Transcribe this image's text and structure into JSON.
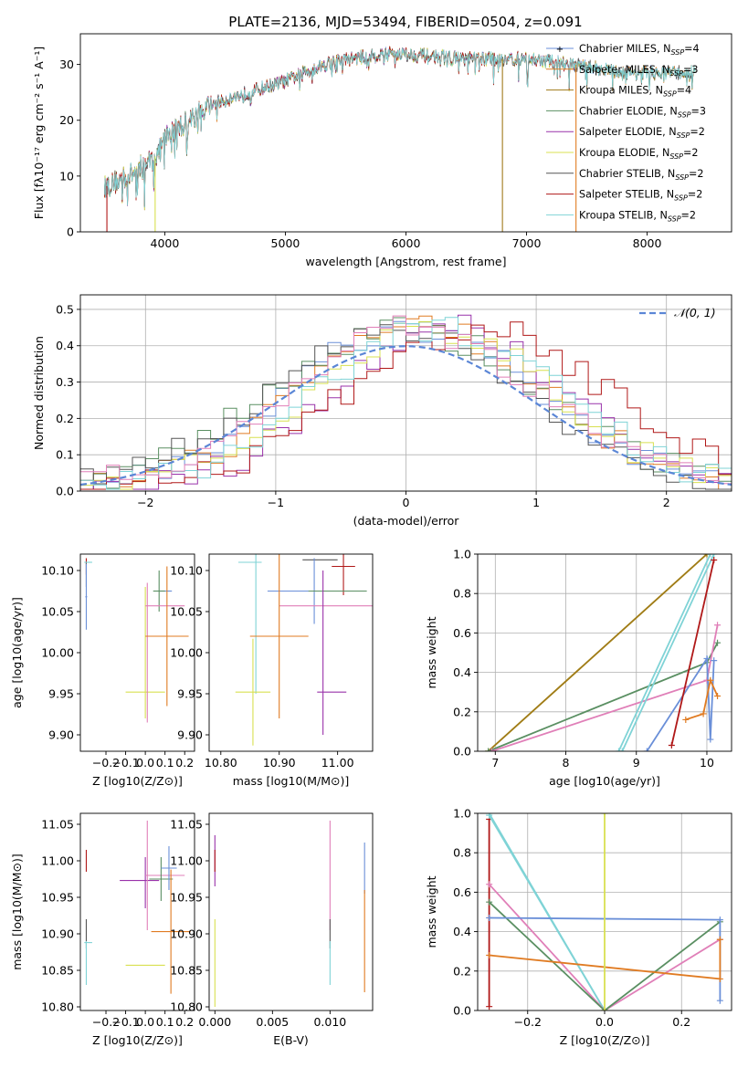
{
  "figure": {
    "title": "PLATE=2136, MJD=53494, FIBERID=0504, z=0.091"
  },
  "palette": {
    "Chabrier MILES": "#6a8fd8",
    "Salpeter MILES": "#e07b22",
    "Kroupa MILES": "#a07a1a",
    "Chabrier ELODIE": "#5a8f62",
    "Salpeter ELODIE": "#9932aa",
    "Kroupa ELODIE": "#d8e050",
    "Chabrier STELIB": "#555555",
    "Salpeter STELIB": "#b01818",
    "Kroupa STELIB": "#7fd3d6",
    "Pink": "#e07fb8"
  },
  "chart_data": [
    {
      "type": "line",
      "title": "PLATE=2136, MJD=53494, FIBERID=0504, z=0.091",
      "xlabel": "wavelength [Angstrom, rest frame]",
      "ylabel": "Flux [fλ10⁻¹⁷ erg cm⁻² s⁻¹ A⁻¹]",
      "xlim": [
        3300,
        8700
      ],
      "ylim": [
        0,
        35.5
      ],
      "xticks": [
        4000,
        5000,
        6000,
        7000,
        8000
      ],
      "yticks": [
        0,
        10,
        20,
        30
      ],
      "legend": "right",
      "series": [
        {
          "name": "Chabrier MILES, N_SSP=4",
          "wave_range": [
            3500,
            8400
          ]
        },
        {
          "name": "Salpeter MILES, N_SSP=3",
          "wave_range": [
            3500,
            8400
          ]
        },
        {
          "name": "Kroupa MILES, N_SSP=4",
          "wave_range": [
            3500,
            8400
          ]
        },
        {
          "name": "Chabrier ELODIE, N_SSP=3",
          "wave_range": [
            3500,
            7400
          ]
        },
        {
          "name": "Salpeter ELODIE, N_SSP=2",
          "wave_range": [
            3500,
            7400
          ]
        },
        {
          "name": "Kroupa ELODIE, N_SSP=2",
          "wave_range": [
            3500,
            7400
          ]
        },
        {
          "name": "Chabrier STELIB, N_SSP=2",
          "wave_range": [
            3500,
            8400
          ]
        },
        {
          "name": "Salpeter STELIB, N_SSP=2",
          "wave_range": [
            3500,
            7400
          ]
        },
        {
          "name": "Kroupa STELIB, N_SSP=2",
          "wave_range": [
            3500,
            8400
          ]
        }
      ],
      "continuum": [
        [
          3500,
          8
        ],
        [
          3700,
          10
        ],
        [
          3950,
          14
        ],
        [
          4000,
          17
        ],
        [
          4200,
          20
        ],
        [
          4400,
          23
        ],
        [
          4700,
          25
        ],
        [
          5000,
          27
        ],
        [
          5200,
          29
        ],
        [
          5400,
          30.5
        ],
        [
          5700,
          31.5
        ],
        [
          5900,
          32
        ],
        [
          6200,
          31.5
        ],
        [
          6500,
          31
        ],
        [
          7000,
          31
        ],
        [
          7400,
          30
        ],
        [
          7800,
          28.5
        ],
        [
          8100,
          28.5
        ],
        [
          8400,
          28.5
        ]
      ],
      "dropouts": [
        3520,
        3920,
        6800,
        7410
      ]
    },
    {
      "type": "bar",
      "xlabel": "(data-model)/error",
      "ylabel": "Normed distribution",
      "xlim": [
        -2.5,
        2.5
      ],
      "ylim": [
        0,
        0.54
      ],
      "xticks": [
        -2,
        -1,
        0,
        1,
        2
      ],
      "yticks": [
        0.0,
        0.1,
        0.2,
        0.3,
        0.4,
        0.5
      ],
      "legend": "top-right",
      "reference": "𝒩(0, 1)",
      "bin_width": 0.1
    },
    {
      "type": "scatter",
      "xlabel": "Z [log10(Z/Z⊙)]",
      "ylabel": "age  [log10(age/yr)]",
      "xlim": [
        -0.33,
        0.25
      ],
      "ylim": [
        9.88,
        10.12
      ],
      "xticks": [
        -0.2,
        -0.1,
        0.0,
        0.1,
        0.2
      ],
      "yticks": [
        9.9,
        9.95,
        10.0,
        10.05,
        10.1
      ],
      "points": [
        {
          "x": -0.3,
          "y": 10.105,
          "xerr": 0.0,
          "yerr": 0.01,
          "color": "Salpeter STELIB"
        },
        {
          "x": -0.3,
          "y": 10.095,
          "xerr": 0.0,
          "yerr": 0.015,
          "color": "Chabrier STELIB"
        },
        {
          "x": -0.3,
          "y": 10.068,
          "xerr": 0.005,
          "yerr": 0.04,
          "color": "Chabrier MILES"
        },
        {
          "x": -0.29,
          "y": 10.11,
          "xerr": 0.02,
          "yerr": 0.0,
          "color": "Kroupa STELIB"
        },
        {
          "x": 0.0,
          "y": 9.952,
          "xerr": 0.1,
          "yerr": 0.0,
          "color": "Kroupa ELODIE"
        },
        {
          "x": 0.01,
          "y": 10.0,
          "xerr": 0.0,
          "yerr": 0.085,
          "color": "Pink"
        },
        {
          "x": 0.0,
          "y": 10.0,
          "xerr": 0.0,
          "yerr": 0.08,
          "color": "Kroupa ELODIE"
        },
        {
          "x": 0.1,
          "y": 10.075,
          "xerr": 0.035,
          "yerr": 0.0,
          "color": "Chabrier MILES"
        },
        {
          "x": 0.07,
          "y": 10.075,
          "xerr": 0.03,
          "yerr": 0.025,
          "color": "Chabrier ELODIE"
        },
        {
          "x": 0.1,
          "y": 10.057,
          "xerr": 0.1,
          "yerr": 0.0,
          "color": "Pink"
        },
        {
          "x": 0.11,
          "y": 10.02,
          "xerr": 0.11,
          "yerr": 0.085,
          "color": "Salpeter MILES"
        }
      ]
    },
    {
      "type": "scatter",
      "xlabel": "mass [log10(M/M⊙)]",
      "ylabel": "",
      "xlim": [
        10.78,
        11.06
      ],
      "ylim": [
        9.88,
        10.12
      ],
      "xticks": [
        10.8,
        10.9,
        11.0
      ],
      "yticks": [
        9.9,
        9.95,
        10.0,
        10.05,
        10.1
      ],
      "points": [
        {
          "x": 10.97,
          "y": 10.113,
          "xerr": 0.03,
          "yerr": 0.0,
          "color": "Chabrier STELIB"
        },
        {
          "x": 11.01,
          "y": 10.105,
          "xerr": 0.02,
          "yerr": 0.035,
          "color": "Salpeter STELIB"
        },
        {
          "x": 10.85,
          "y": 10.11,
          "xerr": 0.02,
          "yerr": 0.0,
          "color": "Kroupa STELIB"
        },
        {
          "x": 10.86,
          "y": 10.05,
          "xerr": 0.0,
          "yerr": 0.1,
          "color": "Kroupa STELIB"
        },
        {
          "x": 10.96,
          "y": 10.075,
          "xerr": 0.08,
          "yerr": 0.04,
          "color": "Chabrier MILES"
        },
        {
          "x": 11.0,
          "y": 10.075,
          "xerr": 0.05,
          "yerr": 0.0,
          "color": "Chabrier ELODIE"
        },
        {
          "x": 10.98,
          "y": 10.057,
          "xerr": 0.08,
          "yerr": 0.0,
          "color": "Pink"
        },
        {
          "x": 10.9,
          "y": 10.02,
          "xerr": 0.05,
          "yerr": 0.1,
          "color": "Salpeter MILES"
        },
        {
          "x": 10.975,
          "y": 10.0,
          "xerr": 0.0,
          "yerr": 0.1,
          "color": "Salpeter ELODIE"
        },
        {
          "x": 10.855,
          "y": 9.952,
          "xerr": 0.03,
          "yerr": 0.065,
          "color": "Kroupa ELODIE"
        },
        {
          "x": 10.99,
          "y": 9.952,
          "xerr": 0.025,
          "yerr": 0.0,
          "color": "Salpeter ELODIE"
        }
      ]
    },
    {
      "type": "line",
      "xlabel": "age  [log10(age/yr)]",
      "ylabel": "mass weight",
      "xlim": [
        6.75,
        10.35
      ],
      "ylim": [
        0,
        1.0
      ],
      "xticks": [
        7,
        8,
        9,
        10
      ],
      "yticks": [
        0.0,
        0.2,
        0.4,
        0.6,
        0.8,
        1.0
      ],
      "series": [
        {
          "color": "Kroupa ELODIE",
          "x": [
            6.9,
            10.0
          ],
          "y": [
            0.0,
            1.0
          ]
        },
        {
          "color": "Kroupa MILES",
          "x": [
            6.9,
            10.0
          ],
          "y": [
            0.0,
            1.0
          ]
        },
        {
          "color": "Chabrier ELODIE",
          "x": [
            6.9,
            10.0,
            10.15
          ],
          "y": [
            0.0,
            0.45,
            0.55
          ]
        },
        {
          "color": "Pink",
          "x": [
            6.95,
            10.0,
            10.15
          ],
          "y": [
            0.0,
            0.36,
            0.64
          ]
        },
        {
          "color": "Kroupa STELIB",
          "x": [
            8.8,
            10.1
          ],
          "y": [
            0.0,
            1.0
          ]
        },
        {
          "color": "Kroupa STELIB",
          "x": [
            8.75,
            10.05
          ],
          "y": [
            0.0,
            1.0
          ]
        },
        {
          "color": "Chabrier MILES",
          "x": [
            9.15,
            10.0,
            10.05,
            10.1
          ],
          "y": [
            0.0,
            0.47,
            0.06,
            0.46
          ]
        },
        {
          "color": "Salpeter MILES",
          "x": [
            9.7,
            9.95,
            10.05,
            10.15
          ],
          "y": [
            0.16,
            0.19,
            0.36,
            0.28
          ]
        },
        {
          "color": "Salpeter STELIB",
          "x": [
            9.5,
            10.1
          ],
          "y": [
            0.03,
            0.97
          ]
        }
      ]
    },
    {
      "type": "scatter",
      "xlabel": "Z [log10(Z/Z⊙)]",
      "ylabel": "mass [log10(M/M⊙)]",
      "xlim": [
        -0.33,
        0.25
      ],
      "ylim": [
        10.795,
        11.065
      ],
      "xticks": [
        -0.2,
        -0.1,
        0.0,
        0.1,
        0.2
      ],
      "yticks": [
        10.8,
        10.85,
        10.9,
        10.95,
        11.0,
        11.05
      ],
      "points": [
        {
          "x": -0.3,
          "y": 11.0,
          "xerr": 0.0,
          "yerr": 0.015,
          "color": "Salpeter STELIB"
        },
        {
          "x": -0.3,
          "y": 10.9,
          "xerr": 0.0,
          "yerr": 0.02,
          "color": "Chabrier STELIB"
        },
        {
          "x": -0.29,
          "y": 10.888,
          "xerr": 0.02,
          "yerr": 0.0,
          "color": "Kroupa STELIB"
        },
        {
          "x": -0.3,
          "y": 10.86,
          "xerr": 0.0,
          "yerr": 0.03,
          "color": "Kroupa STELIB"
        },
        {
          "x": 0.0,
          "y": 10.857,
          "xerr": 0.1,
          "yerr": 0.0,
          "color": "Kroupa ELODIE"
        },
        {
          "x": -0.03,
          "y": 10.973,
          "xerr": 0.1,
          "yerr": 0.0,
          "color": "Salpeter ELODIE"
        },
        {
          "x": 0.0,
          "y": 10.97,
          "xerr": 0.0,
          "yerr": 0.035,
          "color": "Salpeter ELODIE"
        },
        {
          "x": 0.01,
          "y": 10.98,
          "xerr": 0.0,
          "yerr": 0.075,
          "color": "Pink"
        },
        {
          "x": 0.1,
          "y": 10.98,
          "xerr": 0.1,
          "yerr": 0.0,
          "color": "Pink"
        },
        {
          "x": 0.08,
          "y": 10.975,
          "xerr": 0.06,
          "yerr": 0.03,
          "color": "Chabrier ELODIE"
        },
        {
          "x": 0.12,
          "y": 10.99,
          "xerr": 0.04,
          "yerr": 0.03,
          "color": "Chabrier MILES"
        },
        {
          "x": 0.13,
          "y": 10.903,
          "xerr": 0.1,
          "yerr": 0.085,
          "color": "Salpeter MILES"
        }
      ]
    },
    {
      "type": "scatter",
      "xlabel": "E(B-V)",
      "ylabel": "",
      "xlim": [
        -0.0005,
        0.0137
      ],
      "ylim": [
        10.795,
        11.065
      ],
      "xticks": [
        0.0,
        0.005,
        0.01
      ],
      "xticklabels": [
        "0.000",
        "0.005",
        "0.010"
      ],
      "yticks": [
        10.8,
        10.85,
        10.9,
        10.95,
        11.0,
        11.05
      ],
      "points": [
        {
          "x": 0.0,
          "y": 11.0,
          "xerr": 0,
          "yerr": 0.035,
          "color": "Salpeter ELODIE"
        },
        {
          "x": 0.0,
          "y": 11.0,
          "xerr": 0,
          "yerr": 0.015,
          "color": "Salpeter STELIB"
        },
        {
          "x": 0.0,
          "y": 10.86,
          "xerr": 0,
          "yerr": 0.06,
          "color": "Kroupa ELODIE"
        },
        {
          "x": 0.01,
          "y": 10.98,
          "xerr": 0,
          "yerr": 0.075,
          "color": "Pink"
        },
        {
          "x": 0.01,
          "y": 10.9,
          "xerr": 0,
          "yerr": 0.02,
          "color": "Chabrier STELIB"
        },
        {
          "x": 0.01,
          "y": 10.86,
          "xerr": 0,
          "yerr": 0.03,
          "color": "Kroupa STELIB"
        },
        {
          "x": 0.013,
          "y": 10.99,
          "xerr": 0,
          "yerr": 0.035,
          "color": "Chabrier MILES"
        },
        {
          "x": 0.013,
          "y": 10.89,
          "xerr": 0,
          "yerr": 0.07,
          "color": "Salpeter MILES"
        }
      ]
    },
    {
      "type": "line",
      "xlabel": "Z [log10(Z/Z⊙)]",
      "ylabel": "mass weight",
      "xlim": [
        -0.33,
        0.33
      ],
      "ylim": [
        0,
        1.0
      ],
      "xticks": [
        -0.2,
        0.0,
        0.2
      ],
      "yticks": [
        0.0,
        0.2,
        0.4,
        0.6,
        0.8,
        1.0
      ],
      "series": [
        {
          "color": "Salpeter STELIB",
          "x": [
            -0.3,
            -0.3
          ],
          "y": [
            0.02,
            0.97
          ]
        },
        {
          "color": "Kroupa STELIB",
          "x": [
            -0.3,
            0.0
          ],
          "y": [
            1.0,
            0.0
          ]
        },
        {
          "color": "Kroupa STELIB",
          "x": [
            -0.3,
            0.0
          ],
          "y": [
            0.99,
            0.0
          ]
        },
        {
          "color": "Pink",
          "x": [
            -0.3,
            0.0,
            0.3
          ],
          "y": [
            0.64,
            0.0,
            0.36
          ]
        },
        {
          "color": "Chabrier ELODIE",
          "x": [
            -0.3,
            0.0,
            0.3
          ],
          "y": [
            0.55,
            0.0,
            0.45
          ]
        },
        {
          "color": "Chabrier MILES",
          "x": [
            -0.3,
            0.3,
            0.3
          ],
          "y": [
            0.47,
            0.46,
            0.05
          ]
        },
        {
          "color": "Salpeter MILES",
          "x": [
            -0.3,
            0.3,
            0.3
          ],
          "y": [
            0.28,
            0.16,
            0.36
          ]
        },
        {
          "color": "Kroupa ELODIE",
          "x": [
            0.0,
            0.0
          ],
          "y": [
            0.0,
            1.0
          ]
        }
      ]
    }
  ]
}
